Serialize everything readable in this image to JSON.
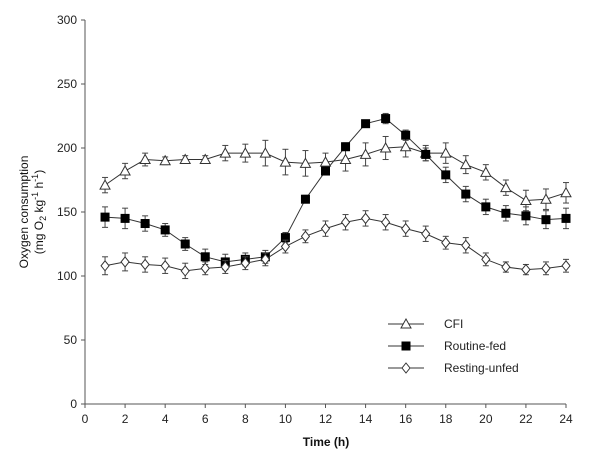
{
  "chart_data": {
    "type": "line",
    "xlabel": "Time (h)",
    "ylabel_line1": "Oxygen consumption",
    "ylabel_line2": "(mg O2 kg-1 h-1)",
    "xlim": [
      0,
      24
    ],
    "ylim": [
      0,
      300
    ],
    "x_ticks": [
      "0",
      "2",
      "4",
      "6",
      "8",
      "10",
      "12",
      "14",
      "16",
      "18",
      "20",
      "22",
      "24"
    ],
    "y_ticks": [
      "0",
      "50",
      "100",
      "150",
      "200",
      "250",
      "300"
    ],
    "grid": false,
    "legend_position": "bottom-right",
    "x": [
      1,
      2,
      3,
      4,
      5,
      6,
      7,
      8,
      9,
      10,
      11,
      12,
      13,
      14,
      15,
      16,
      17,
      18,
      19,
      20,
      21,
      22,
      23,
      24
    ],
    "series": [
      {
        "name": "CFI",
        "marker": "triangle-open",
        "values": [
          171,
          182,
          191,
          190,
          191,
          191,
          196,
          196,
          196,
          189,
          188,
          189,
          191,
          195,
          200,
          201,
          196,
          196,
          187,
          181,
          169,
          159,
          160,
          165
        ],
        "errors": [
          6,
          6,
          5,
          3,
          3,
          3,
          6,
          7,
          10,
          10,
          10,
          7,
          9,
          9,
          9,
          8,
          6,
          8,
          7,
          6,
          6,
          8,
          8,
          8
        ]
      },
      {
        "name": "Routine-fed",
        "marker": "square-filled",
        "values": [
          146,
          145,
          141,
          136,
          125,
          115,
          111,
          113,
          115,
          130,
          160,
          182,
          201,
          219,
          223,
          210,
          195,
          179,
          164,
          154,
          149,
          147,
          144,
          145
        ],
        "errors": [
          8,
          8,
          6,
          5,
          5,
          6,
          6,
          5,
          5,
          4,
          3,
          3,
          3,
          2,
          4,
          4,
          5,
          6,
          6,
          6,
          6,
          7,
          7,
          8
        ]
      },
      {
        "name": "Resting-unfed",
        "marker": "diamond-open",
        "values": [
          108,
          111,
          109,
          108,
          104,
          106,
          107,
          110,
          113,
          123,
          131,
          137,
          142,
          145,
          142,
          137,
          133,
          126,
          124,
          113,
          107,
          105,
          106,
          108
        ],
        "errors": [
          7,
          7,
          6,
          6,
          6,
          5,
          5,
          5,
          5,
          5,
          5,
          6,
          6,
          6,
          6,
          6,
          6,
          5,
          6,
          5,
          4,
          4,
          5,
          5
        ]
      }
    ]
  }
}
